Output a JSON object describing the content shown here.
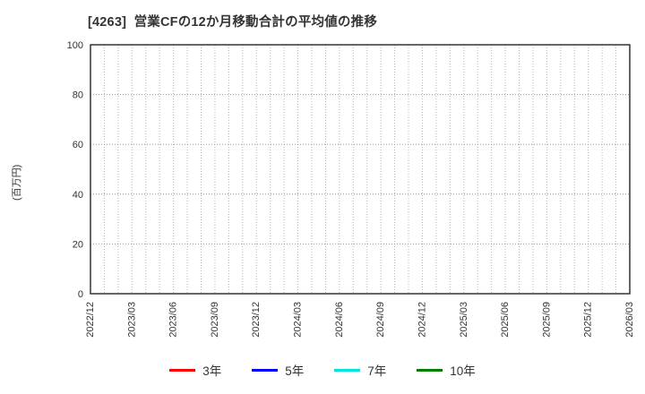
{
  "title": "[4263]  営業CFの12か月移動合計の平均値の推移",
  "ylabel": "(百万円)",
  "legend": {
    "position": "bottom-center",
    "items": [
      {
        "label": "3年",
        "color": "#ff0000"
      },
      {
        "label": "5年",
        "color": "#0000ff"
      },
      {
        "label": "7年",
        "color": "#00e5e5"
      },
      {
        "label": "10年",
        "color": "#008000"
      }
    ]
  },
  "chart_data": {
    "type": "line",
    "title": "[4263]  営業CFの12か月移動合計の平均値の推移",
    "xlabel": "",
    "ylabel": "(百万円)",
    "x_tick_labels": [
      "2022/12",
      "2023/03",
      "2023/06",
      "2023/09",
      "2023/12",
      "2024/03",
      "2024/06",
      "2024/09",
      "2024/12",
      "2025/03",
      "2025/06",
      "2025/09",
      "2025/12",
      "2026/03"
    ],
    "minor_x_divisions_per_tick": 3,
    "ylim": [
      0,
      100
    ],
    "yticks": [
      0,
      20,
      40,
      60,
      80,
      100
    ],
    "grid": true,
    "legend_position": "bottom",
    "series": [
      {
        "name": "3年",
        "color": "#ff0000",
        "values": []
      },
      {
        "name": "5年",
        "color": "#0000ff",
        "values": []
      },
      {
        "name": "7年",
        "color": "#00e5e5",
        "values": []
      },
      {
        "name": "10年",
        "color": "#008000",
        "values": []
      }
    ]
  },
  "style": {
    "border_color": "#262626",
    "major_grid_color": "#969696",
    "minor_grid_color": "#b4b4b4",
    "text_color": "#333333",
    "background": "#ffffff"
  }
}
